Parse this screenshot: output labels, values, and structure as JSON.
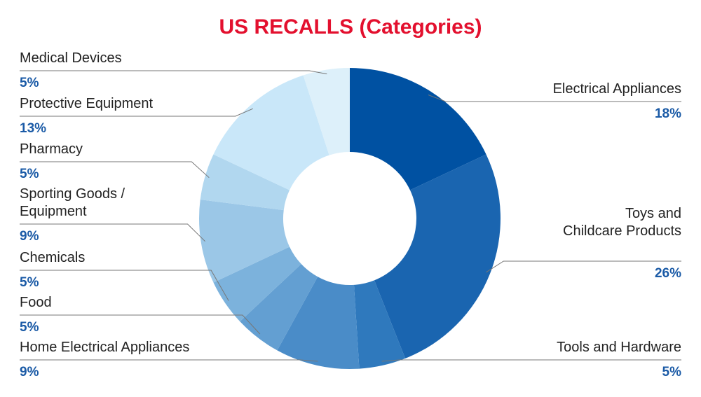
{
  "chart_data": {
    "type": "donut",
    "title": "US RECALLS (Categories)",
    "categories": [
      "Electrical Appliances",
      "Toys and\nChildcare Products",
      "Tools and Hardware",
      "Home Electrical Appliances",
      "Food",
      "Chemicals",
      "Sporting Goods /\nEquipment",
      "Pharmacy",
      "Protective Equipment",
      "Medical Devices"
    ],
    "values": [
      18,
      26,
      5,
      9,
      5,
      5,
      9,
      5,
      13,
      5
    ],
    "value_labels": [
      "18%",
      "26%",
      "5%",
      "9%",
      "5%",
      "5%",
      "9%",
      "5%",
      "13%",
      "5%"
    ],
    "colors": [
      "#0051a2",
      "#1a65b0",
      "#2f79bd",
      "#4a8cc8",
      "#639fd2",
      "#7cb2dc",
      "#9bc7e7",
      "#b1d7ef",
      "#c9e7f9",
      "#ddf0fa"
    ]
  }
}
